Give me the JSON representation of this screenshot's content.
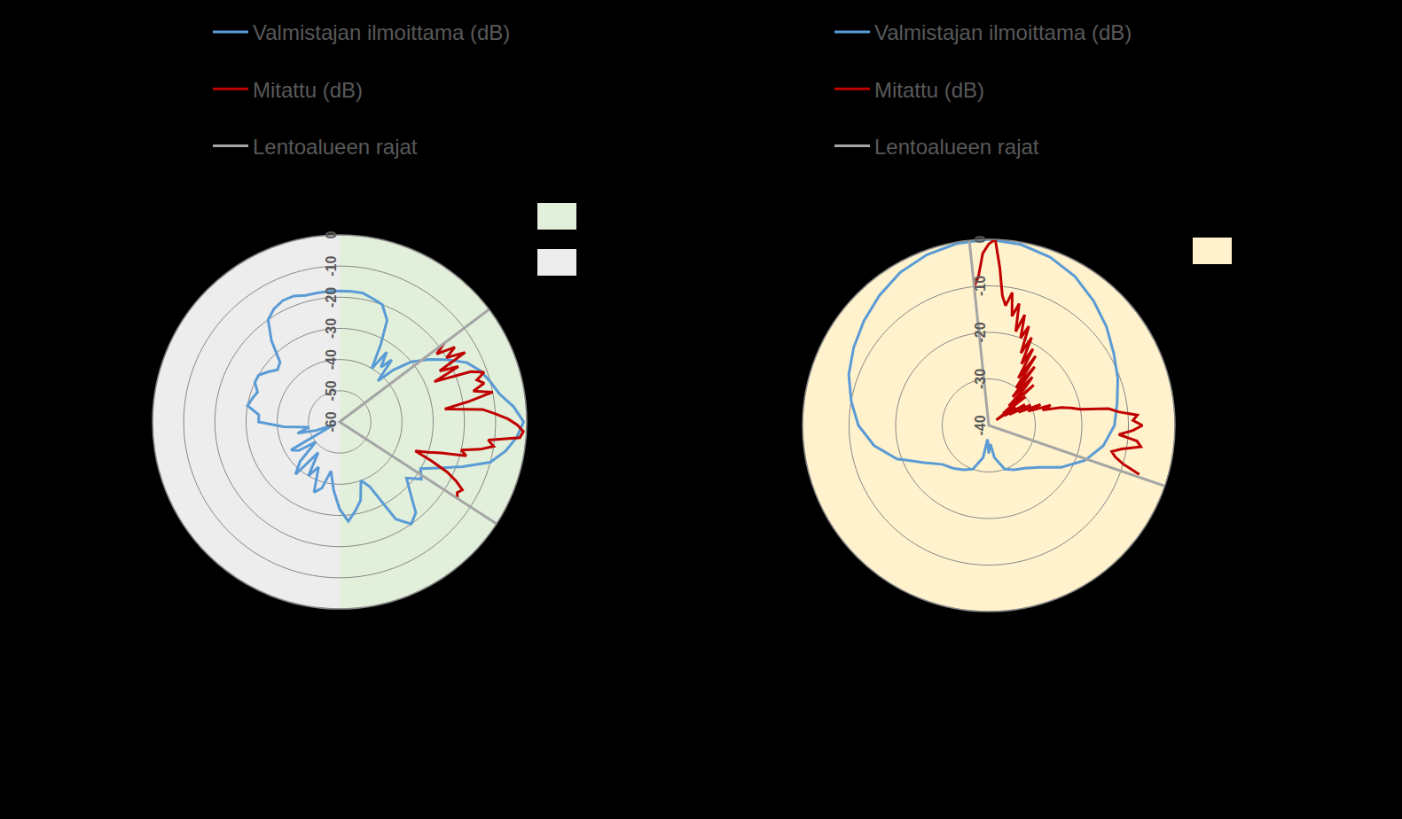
{
  "chart_data": [
    {
      "type": "polar",
      "ylim": [
        -60,
        0
      ],
      "yticks": [
        0,
        -10,
        -20,
        -30,
        -40,
        -50,
        -60
      ],
      "sectors": [
        {
          "color": "#e2efda",
          "theta": [
            0,
            180
          ]
        },
        {
          "color": "#ededed",
          "theta": [
            180,
            360
          ]
        }
      ],
      "series": [
        {
          "name": "Valmistajan ilmoittama (dB)",
          "color": "#5b9bd5",
          "theta": [
            0,
            5,
            10,
            15,
            20,
            25,
            28,
            31,
            34,
            37,
            40,
            43,
            46,
            50,
            55,
            60,
            65,
            70,
            75,
            80,
            85,
            90,
            95,
            100,
            105,
            110,
            115,
            120,
            125,
            130,
            135,
            140,
            145,
            150,
            155,
            160,
            165,
            170,
            175,
            180,
            185,
            190,
            195,
            200,
            205,
            210,
            215,
            220,
            225,
            230,
            235,
            240,
            245,
            250,
            255,
            260,
            265,
            270,
            275,
            280,
            285,
            290,
            295,
            300,
            305,
            310,
            315,
            320,
            325,
            330,
            335,
            340,
            345,
            350,
            355,
            360
          ],
          "values": [
            -18,
            -18,
            -18,
            -19,
            -20,
            -24,
            -32,
            -40,
            -33,
            -38,
            -34,
            -42,
            -36,
            -30,
            -25,
            -20,
            -15,
            -12,
            -10,
            -8,
            -4,
            -1,
            -3,
            -6,
            -10,
            -18,
            -25,
            -30,
            -28,
            -32,
            -28,
            -22,
            -20,
            -24,
            -37,
            -40,
            -34,
            -31,
            -28,
            -32,
            -38,
            -44,
            -38,
            -36,
            -44,
            -40,
            -48,
            -38,
            -42,
            -50,
            -44,
            -42,
            -58,
            -52,
            -46,
            -50,
            -42,
            -34,
            -34,
            -30,
            -31,
            -32,
            -30,
            -30,
            -32,
            -34,
            -33,
            -26,
            -20,
            -18,
            -17,
            -17,
            -18,
            -18,
            -18,
            -18
          ]
        },
        {
          "name": "Mitattu (dB)",
          "color": "#c00000",
          "theta": [
            53,
            55,
            57,
            59,
            61,
            63,
            65,
            67,
            69,
            71,
            73,
            75,
            77,
            79,
            81,
            83,
            85,
            87,
            89,
            91,
            93,
            95,
            97,
            99,
            101,
            103,
            105,
            107,
            109,
            111,
            113,
            115,
            117,
            119,
            121,
            123
          ],
          "values": [
            -18,
            -22,
            -16,
            -20,
            -14,
            -24,
            -18,
            -27,
            -15,
            -11,
            -14,
            -12,
            -16,
            -10,
            -18,
            -26,
            -14,
            -10,
            -6,
            -3,
            -1,
            -2,
            -12,
            -10,
            -14,
            -20,
            -18,
            -26,
            -30,
            -34,
            -28,
            -22,
            -18,
            -15,
            -16,
            -15
          ]
        },
        {
          "name": "Lentoalueen rajat",
          "color": "#a5a5a5",
          "theta": [
            53,
            53,
            123
          ],
          "values": [
            0,
            -60,
            0
          ]
        }
      ]
    },
    {
      "type": "polar",
      "ylim": [
        -40,
        0
      ],
      "yticks": [
        0,
        -10,
        -20,
        -30,
        -40
      ],
      "sectors": [
        {
          "color": "#fff2cc",
          "theta": [
            0,
            360
          ]
        }
      ],
      "series": [
        {
          "name": "Valmistajan ilmoittama (dB)",
          "color": "#5b9bd5",
          "theta": [
            0,
            10,
            20,
            30,
            40,
            50,
            60,
            70,
            80,
            90,
            100,
            110,
            120,
            130,
            140,
            150,
            160,
            170,
            175,
            180,
            185,
            190,
            200,
            210,
            220,
            230,
            240,
            250,
            260,
            270,
            280,
            290,
            300,
            310,
            320,
            330,
            340,
            350,
            360
          ],
          "values": [
            0,
            -0.5,
            -1.5,
            -3,
            -5,
            -7,
            -9,
            -10.5,
            -12,
            -13,
            -15,
            -18,
            -22,
            -26,
            -28,
            -29,
            -30,
            -33,
            -36,
            -34,
            -37,
            -33,
            -30,
            -29,
            -28,
            -27,
            -24,
            -19,
            -15,
            -12,
            -10,
            -8,
            -6.5,
            -5,
            -3.5,
            -2,
            -1,
            -0.3,
            0
          ]
        },
        {
          "name": "Mitattu (dB)",
          "color": "#c00000",
          "theta": [
            354,
            356,
            358,
            0,
            2,
            4,
            6,
            8,
            10,
            12,
            14,
            16,
            18,
            20,
            22,
            24,
            26,
            28,
            30,
            32,
            34,
            36,
            38,
            40,
            42,
            44,
            46,
            48,
            50,
            52,
            54,
            56,
            58,
            60,
            62,
            64,
            66,
            68,
            70,
            72,
            74,
            76,
            78,
            80,
            82,
            84,
            86,
            88,
            90,
            92,
            94,
            96,
            98,
            100,
            102,
            104,
            106,
            108
          ],
          "values": [
            -10,
            -8,
            -3,
            -1,
            0,
            -6,
            -12,
            -14,
            -11,
            -16,
            -13,
            -19,
            -15,
            -20,
            -17,
            -23,
            -19,
            -25,
            -21,
            -28,
            -22,
            -30,
            -24,
            -32,
            -26,
            -29,
            -34,
            -27,
            -36,
            -30,
            -38,
            -33,
            -36,
            -31,
            -35,
            -30,
            -33,
            -28,
            -31,
            -26,
            -28,
            -24,
            -22,
            -20,
            -14,
            -12,
            -8,
            -9,
            -7,
            -9,
            -12,
            -8,
            -7,
            -11,
            -13,
            -12,
            -10,
            -6
          ]
        },
        {
          "name": "Lentoalueen rajat",
          "color": "#a5a5a5",
          "theta": [
            354,
            354,
            109
          ],
          "values": [
            0,
            -40,
            0
          ]
        }
      ]
    }
  ]
}
